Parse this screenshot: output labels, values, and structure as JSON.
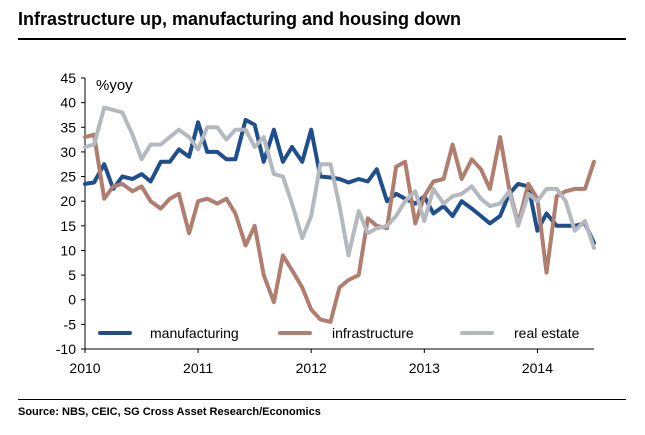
{
  "header": {
    "title": "Infrastructure up, manufacturing and housing down"
  },
  "footer": {
    "source": "Source: NBS, CEIC, SG Cross Asset Research/Economics"
  },
  "chart_data": {
    "type": "line",
    "title": "Infrastructure up, manufacturing and housing down",
    "unit_label": "%yoy",
    "xlabel": "",
    "ylabel": "",
    "xlim": [
      2010,
      2014.5
    ],
    "ylim": [
      -10,
      45
    ],
    "yticks": [
      -10,
      -5,
      0,
      5,
      10,
      15,
      20,
      25,
      30,
      35,
      40,
      45
    ],
    "xticks": [
      2010,
      2011,
      2012,
      2013,
      2014
    ],
    "grid": false,
    "legend_position": "bottom-inside",
    "series": [
      {
        "name": "manufacturing",
        "color": "#1f4e8c",
        "points": [
          [
            2010.0,
            23.5
          ],
          [
            2010.08,
            23.8
          ],
          [
            2010.17,
            27.5
          ],
          [
            2010.25,
            22.5
          ],
          [
            2010.33,
            25.0
          ],
          [
            2010.42,
            24.5
          ],
          [
            2010.5,
            25.5
          ],
          [
            2010.58,
            24.0
          ],
          [
            2010.67,
            28.0
          ],
          [
            2010.75,
            28.0
          ],
          [
            2010.83,
            30.5
          ],
          [
            2010.92,
            29.0
          ],
          [
            2011.0,
            36.0
          ],
          [
            2011.08,
            30.0
          ],
          [
            2011.17,
            30.0
          ],
          [
            2011.25,
            28.5
          ],
          [
            2011.33,
            28.5
          ],
          [
            2011.42,
            36.5
          ],
          [
            2011.5,
            35.5
          ],
          [
            2011.58,
            28.0
          ],
          [
            2011.67,
            34.5
          ],
          [
            2011.75,
            28.0
          ],
          [
            2011.83,
            31.0
          ],
          [
            2011.92,
            28.0
          ],
          [
            2012.0,
            34.5
          ],
          [
            2012.08,
            25.0
          ],
          [
            2012.17,
            24.8
          ],
          [
            2012.25,
            24.5
          ],
          [
            2012.33,
            23.8
          ],
          [
            2012.42,
            24.5
          ],
          [
            2012.5,
            24.0
          ],
          [
            2012.58,
            26.5
          ],
          [
            2012.67,
            20.0
          ],
          [
            2012.75,
            21.5
          ],
          [
            2012.83,
            20.5
          ],
          [
            2012.92,
            19.5
          ],
          [
            2013.0,
            21.0
          ],
          [
            2013.08,
            17.5
          ],
          [
            2013.17,
            19.0
          ],
          [
            2013.25,
            17.0
          ],
          [
            2013.33,
            20.0
          ],
          [
            2013.42,
            18.5
          ],
          [
            2013.5,
            17.0
          ],
          [
            2013.58,
            15.5
          ],
          [
            2013.67,
            17.0
          ],
          [
            2013.75,
            21.5
          ],
          [
            2013.83,
            23.5
          ],
          [
            2013.92,
            23.0
          ],
          [
            2014.0,
            14.0
          ],
          [
            2014.08,
            17.5
          ],
          [
            2014.17,
            15.0
          ],
          [
            2014.25,
            15.0
          ],
          [
            2014.33,
            15.0
          ],
          [
            2014.42,
            15.5
          ],
          [
            2014.5,
            11.5
          ]
        ]
      },
      {
        "name": "infrastructure",
        "color": "#b07e6e",
        "points": [
          [
            2010.0,
            33.0
          ],
          [
            2010.08,
            33.5
          ],
          [
            2010.17,
            20.5
          ],
          [
            2010.25,
            23.0
          ],
          [
            2010.33,
            23.5
          ],
          [
            2010.42,
            22.0
          ],
          [
            2010.5,
            23.0
          ],
          [
            2010.58,
            20.0
          ],
          [
            2010.67,
            18.5
          ],
          [
            2010.75,
            20.5
          ],
          [
            2010.83,
            21.5
          ],
          [
            2010.92,
            13.5
          ],
          [
            2011.0,
            20.0
          ],
          [
            2011.08,
            20.5
          ],
          [
            2011.17,
            19.5
          ],
          [
            2011.25,
            20.5
          ],
          [
            2011.33,
            17.5
          ],
          [
            2011.42,
            11.0
          ],
          [
            2011.5,
            15.0
          ],
          [
            2011.58,
            5.0
          ],
          [
            2011.67,
            -0.5
          ],
          [
            2011.75,
            9.0
          ],
          [
            2011.83,
            6.0
          ],
          [
            2011.92,
            2.5
          ],
          [
            2012.0,
            -2.0
          ],
          [
            2012.08,
            -4.0
          ],
          [
            2012.17,
            -4.5
          ],
          [
            2012.25,
            2.5
          ],
          [
            2012.33,
            4.0
          ],
          [
            2012.42,
            5.0
          ],
          [
            2012.5,
            16.5
          ],
          [
            2012.58,
            15.0
          ],
          [
            2012.67,
            14.5
          ],
          [
            2012.75,
            27.0
          ],
          [
            2012.83,
            28.0
          ],
          [
            2012.92,
            15.5
          ],
          [
            2013.0,
            21.0
          ],
          [
            2013.08,
            24.0
          ],
          [
            2013.17,
            24.5
          ],
          [
            2013.25,
            31.5
          ],
          [
            2013.33,
            24.5
          ],
          [
            2013.42,
            28.5
          ],
          [
            2013.5,
            26.5
          ],
          [
            2013.58,
            22.5
          ],
          [
            2013.67,
            33.0
          ],
          [
            2013.75,
            22.5
          ],
          [
            2013.83,
            15.5
          ],
          [
            2013.92,
            23.5
          ],
          [
            2014.0,
            20.5
          ],
          [
            2014.08,
            5.5
          ],
          [
            2014.17,
            21.0
          ],
          [
            2014.25,
            22.0
          ],
          [
            2014.33,
            22.5
          ],
          [
            2014.42,
            22.5
          ],
          [
            2014.5,
            28.0
          ]
        ]
      },
      {
        "name": "real estate",
        "color": "#b4b8bf",
        "points": [
          [
            2010.0,
            31.0
          ],
          [
            2010.08,
            31.5
          ],
          [
            2010.17,
            39.0
          ],
          [
            2010.25,
            38.5
          ],
          [
            2010.33,
            38.0
          ],
          [
            2010.42,
            33.5
          ],
          [
            2010.5,
            28.5
          ],
          [
            2010.58,
            31.5
          ],
          [
            2010.67,
            31.5
          ],
          [
            2010.75,
            33.0
          ],
          [
            2010.83,
            34.5
          ],
          [
            2010.92,
            33.0
          ],
          [
            2011.0,
            30.5
          ],
          [
            2011.08,
            35.0
          ],
          [
            2011.17,
            35.0
          ],
          [
            2011.25,
            32.5
          ],
          [
            2011.33,
            34.5
          ],
          [
            2011.42,
            34.5
          ],
          [
            2011.5,
            31.0
          ],
          [
            2011.58,
            33.0
          ],
          [
            2011.67,
            25.5
          ],
          [
            2011.75,
            25.0
          ],
          [
            2011.83,
            19.5
          ],
          [
            2011.92,
            12.5
          ],
          [
            2012.0,
            17.0
          ],
          [
            2012.08,
            27.5
          ],
          [
            2012.17,
            27.5
          ],
          [
            2012.25,
            19.0
          ],
          [
            2012.33,
            9.0
          ],
          [
            2012.42,
            18.0
          ],
          [
            2012.5,
            13.5
          ],
          [
            2012.58,
            14.5
          ],
          [
            2012.67,
            15.0
          ],
          [
            2012.75,
            17.0
          ],
          [
            2012.83,
            20.0
          ],
          [
            2012.92,
            22.0
          ],
          [
            2013.0,
            16.0
          ],
          [
            2013.08,
            22.5
          ],
          [
            2013.17,
            19.5
          ],
          [
            2013.25,
            21.0
          ],
          [
            2013.33,
            21.5
          ],
          [
            2013.42,
            23.0
          ],
          [
            2013.5,
            20.5
          ],
          [
            2013.58,
            19.0
          ],
          [
            2013.67,
            19.5
          ],
          [
            2013.75,
            22.0
          ],
          [
            2013.83,
            15.0
          ],
          [
            2013.92,
            21.5
          ],
          [
            2014.0,
            20.0
          ],
          [
            2014.08,
            22.5
          ],
          [
            2014.17,
            22.5
          ],
          [
            2014.25,
            20.0
          ],
          [
            2014.33,
            14.0
          ],
          [
            2014.42,
            16.0
          ],
          [
            2014.5,
            10.5
          ]
        ]
      }
    ]
  }
}
